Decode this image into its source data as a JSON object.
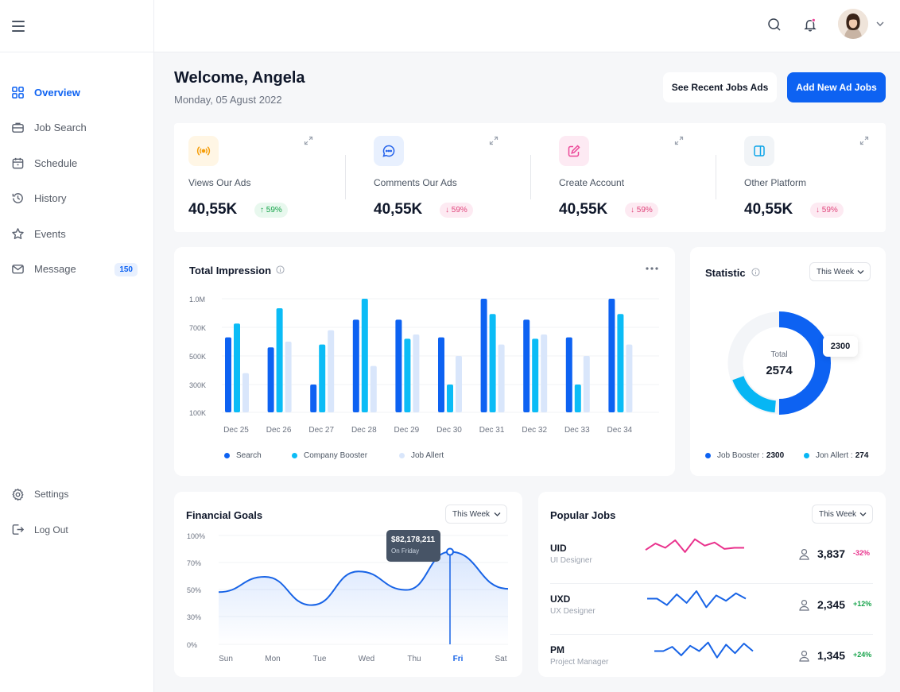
{
  "sidebar": {
    "items": [
      {
        "label": "Overview",
        "icon": "grid-icon",
        "active": true
      },
      {
        "label": "Job Search",
        "icon": "briefcase-icon"
      },
      {
        "label": "Schedule",
        "icon": "calendar-icon"
      },
      {
        "label": "History",
        "icon": "history-icon"
      },
      {
        "label": "Events",
        "icon": "star-icon"
      },
      {
        "label": "Message",
        "icon": "mail-icon",
        "badge": "150"
      }
    ],
    "bottom": [
      {
        "label": "Settings",
        "icon": "gear-icon"
      },
      {
        "label": "Log Out",
        "icon": "logout-icon"
      }
    ]
  },
  "header": {
    "welcome": "Welcome, Angela",
    "date": "Monday, 05 Agust 2022",
    "recent_btn": "See Recent Jobs Ads",
    "add_btn": "Add New Ad Jobs"
  },
  "stats": [
    {
      "title": "Views Our Ads",
      "value": "40,55K",
      "change": "59%",
      "trend": "up",
      "icon": "broadcast-icon",
      "color": "#f59e0b",
      "bg": "#fff6e5"
    },
    {
      "title": "Comments Our Ads",
      "value": "40,55K",
      "change": "59%",
      "trend": "down",
      "icon": "chat-icon",
      "color": "#2563eb",
      "bg": "#e8f0fe"
    },
    {
      "title": "Create Account",
      "value": "40,55K",
      "change": "59%",
      "trend": "down",
      "icon": "pencil-icon",
      "color": "#ec4899",
      "bg": "#fdeaf3"
    },
    {
      "title": "Other Platform",
      "value": "40,55K",
      "change": "59%",
      "trend": "down",
      "icon": "panel-icon",
      "color": "#0ea5e9",
      "bg": "#f1f4f7"
    }
  ],
  "impression": {
    "title": "Total Impression",
    "legend": [
      "Search",
      "Company Booster",
      "Job Allert"
    ]
  },
  "statistic": {
    "title": "Statistic",
    "period": "This Week",
    "total_label": "Total",
    "total": "2574",
    "callout": "2300",
    "legend": [
      {
        "label": "Job Booster :",
        "value": "2300",
        "color": "#0d62f2"
      },
      {
        "label": "Jon Allert :",
        "value": "274",
        "color": "#06b6f4"
      }
    ]
  },
  "financial": {
    "title": "Financial Goals",
    "period": "This Week",
    "tooltip_value": "$82,178,211",
    "tooltip_label": "On Friday"
  },
  "popular": {
    "title": "Popular Jobs",
    "period": "This Week",
    "jobs": [
      {
        "code": "UID",
        "role": "UI Designer",
        "count": "3,837",
        "change": "-32%",
        "color": "#e9318c"
      },
      {
        "code": "UXD",
        "role": "UX Designer",
        "count": "2,345",
        "change": "+12%",
        "color": "#1763e6"
      },
      {
        "code": "PM",
        "role": "Project Manager",
        "count": "1,345",
        "change": "+24%",
        "color": "#1763e6"
      }
    ]
  },
  "chart_data": [
    {
      "type": "bar",
      "title": "Total Impression",
      "categories": [
        "Dec 25",
        "Dec 26",
        "Dec 27",
        "Dec 28",
        "Dec 29",
        "Dec 30",
        "Dec 31",
        "Dec 32",
        "Dec 33",
        "Dec 34"
      ],
      "y_ticks": [
        "1.0M",
        "700K",
        "500K",
        "300K",
        "100K"
      ],
      "ylim": [
        100000,
        1000000
      ],
      "series": [
        {
          "name": "Search",
          "color": "#0d62f2",
          "values": [
            630000,
            560000,
            300000,
            780000,
            780000,
            630000,
            1000000,
            780000,
            630000,
            1000000
          ]
        },
        {
          "name": "Company Booster",
          "color": "#0bbcf6",
          "values": [
            740000,
            900000,
            580000,
            1000000,
            620000,
            300000,
            840000,
            620000,
            300000,
            840000
          ]
        },
        {
          "name": "Job Allert",
          "color": "#d9e6fb",
          "values": [
            380000,
            600000,
            680000,
            430000,
            650000,
            500000,
            580000,
            650000,
            500000,
            580000
          ]
        }
      ],
      "legend": "bottom"
    },
    {
      "type": "pie",
      "title": "Statistic",
      "series": [
        {
          "name": "Job Booster",
          "value": 2300,
          "color": "#0d62f2"
        },
        {
          "name": "Jon Allert",
          "value": 274,
          "color": "#06b6f4"
        }
      ]
    },
    {
      "type": "area",
      "title": "Financial Goals",
      "categories": [
        "Sun",
        "Mon",
        "Tue",
        "Wed",
        "Thu",
        "Fri",
        "Sat"
      ],
      "y_ticks": [
        "100%",
        "70%",
        "50%",
        "30%",
        "0%"
      ],
      "values": [
        48,
        62,
        36,
        67,
        50,
        85,
        51
      ],
      "highlight": "Fri"
    },
    {
      "type": "line",
      "title": "Popular Jobs trends",
      "series": [
        {
          "name": "UID",
          "values": [
            40,
            70,
            50,
            85,
            30,
            90,
            60,
            75,
            45,
            50,
            50
          ]
        },
        {
          "name": "UXD",
          "values": [
            50,
            50,
            20,
            70,
            30,
            85,
            10,
            65,
            40,
            75,
            50
          ]
        },
        {
          "name": "PM",
          "values": [
            50,
            50,
            70,
            30,
            75,
            50,
            90,
            20,
            80,
            40,
            85,
            50
          ]
        }
      ]
    }
  ]
}
